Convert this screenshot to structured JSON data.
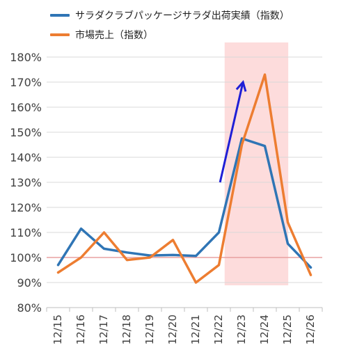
{
  "chart_data": {
    "type": "line",
    "categories": [
      "12/15",
      "12/16",
      "12/17",
      "12/18",
      "12/19",
      "12/20",
      "12/21",
      "12/22",
      "12/23",
      "12/24",
      "12/25",
      "12/26"
    ],
    "series": [
      {
        "name": "サラダクラブパッケージサラダ出荷実績（指数）",
        "color": "#2f75b5",
        "values": [
          97,
          111.5,
          103.5,
          102,
          100.8,
          101,
          100.6,
          110,
          147.5,
          144.5,
          105.5,
          96
        ]
      },
      {
        "name": "市場売上（指数）",
        "color": "#ed7d31",
        "values": [
          94,
          100,
          110,
          99,
          100,
          107,
          90,
          97,
          145,
          173,
          114,
          93
        ]
      }
    ],
    "y_ticks": [
      "80%",
      "90%",
      "100%",
      "110%",
      "120%",
      "130%",
      "140%",
      "150%",
      "160%",
      "170%",
      "180%"
    ],
    "ylim": [
      80,
      180
    ],
    "grid": true,
    "reference_line": {
      "value": 100,
      "color": "#e8a0a0"
    },
    "highlight_band": {
      "from": "12/22",
      "to": "12/25",
      "color": "#fddcdc"
    },
    "arrow": {
      "from": {
        "x": "12/22",
        "y": 130
      },
      "to": {
        "x": "12/23",
        "y": 170
      },
      "color": "#1f1fd6"
    },
    "legend_position": "top-left"
  }
}
